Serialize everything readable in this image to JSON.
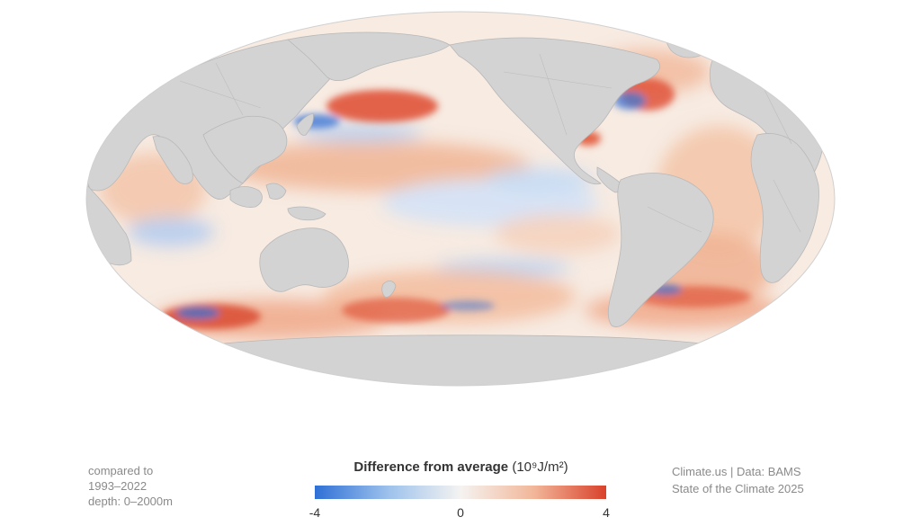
{
  "map": {
    "projection": "Mollweide",
    "variable": "ocean heat content anomaly",
    "colors": {
      "land": "#d3d3d3",
      "land_border": "#b5b5b5",
      "ocean_neutral": "#f7f3ef",
      "cool_strong": "#2f6fd6",
      "cool_light": "#c9dcf3",
      "warm_light": "#f6ccb0",
      "warm_mid": "#ec9a72",
      "warm_strong": "#d9412b"
    }
  },
  "legend": {
    "title": "Difference from average",
    "unit": "(10⁹J/m²)",
    "ticks": [
      "-4",
      "0",
      "4"
    ],
    "min": -4,
    "max": 4,
    "gradient": [
      "#2f6fd6",
      "#9cc1ec",
      "#f5f3f1",
      "#f2b79a",
      "#d9412b"
    ]
  },
  "notes_left": [
    "compared to",
    "1993–2022",
    "depth: 0–2000m"
  ],
  "notes_right": [
    "Climate.us | Data: BAMS",
    "State of the Climate 2025"
  ]
}
